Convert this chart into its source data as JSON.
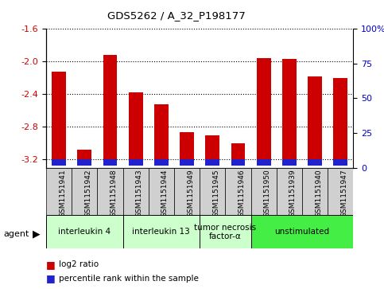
{
  "title": "GDS5262 / A_32_P198177",
  "samples": [
    "GSM1151941",
    "GSM1151942",
    "GSM1151948",
    "GSM1151943",
    "GSM1151944",
    "GSM1151949",
    "GSM1151945",
    "GSM1151946",
    "GSM1151950",
    "GSM1151939",
    "GSM1151940",
    "GSM1151947"
  ],
  "log2_values": [
    -2.12,
    -3.08,
    -1.92,
    -2.38,
    -2.52,
    -2.87,
    -2.9,
    -3.0,
    -1.96,
    -1.97,
    -2.18,
    -2.2
  ],
  "percentile_values": [
    4,
    3,
    4,
    4,
    4,
    3,
    3,
    3,
    4,
    4,
    3,
    4
  ],
  "ylim_left": [
    -3.3,
    -1.6
  ],
  "ylim_right": [
    0,
    100
  ],
  "yticks_left": [
    -3.2,
    -2.8,
    -2.4,
    -2.0
  ],
  "ytick_left_labels": [
    "-3.2",
    "-2.8",
    "-2.4",
    "-2.0"
  ],
  "ytick_top_left": -1.6,
  "ytick_top_left_label": "-1.6",
  "yticks_right": [
    0,
    25,
    50,
    75,
    100
  ],
  "ytick_labels_right": [
    "0",
    "25",
    "50",
    "75",
    "100%"
  ],
  "bar_color": "#cc0000",
  "percentile_color": "#2222cc",
  "bar_bottom": -3.28,
  "percentile_bar_height": 0.08,
  "agents": [
    {
      "label": "interleukin 4",
      "indices": [
        0,
        1,
        2
      ],
      "color": "#ccffcc"
    },
    {
      "label": "interleukin 13",
      "indices": [
        3,
        4,
        5
      ],
      "color": "#ccffcc"
    },
    {
      "label": "tumor necrosis\nfactor-α",
      "indices": [
        6,
        7
      ],
      "color": "#ccffcc"
    },
    {
      "label": "unstimulated",
      "indices": [
        8,
        9,
        10,
        11
      ],
      "color": "#44ee44"
    }
  ],
  "agent_label": "agent",
  "legend_log2": "log2 ratio",
  "legend_percentile": "percentile rank within the sample",
  "background_color": "#ffffff",
  "bar_width": 0.55,
  "tick_label_color_left": "#cc0000",
  "tick_label_color_right": "#0000cc",
  "grid_color": "#000000",
  "sample_box_color": "#d0d0d0"
}
